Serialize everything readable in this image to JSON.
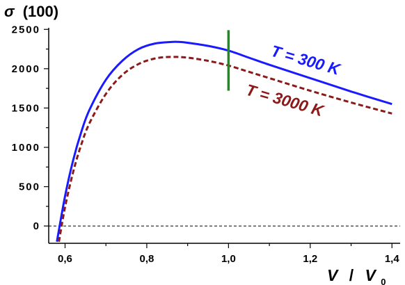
{
  "chart_data": {
    "type": "line",
    "title": "",
    "ylabel": {
      "symbol": "σ",
      "suffix": "(100)"
    },
    "xlabel": {
      "numerator": "V",
      "separator": "/",
      "denominator": "V",
      "denominator_subscript": "0"
    },
    "xlim": [
      0.56,
      1.42
    ],
    "ylim": [
      -220,
      2520
    ],
    "x_ticks": [
      0.6,
      0.8,
      1.0,
      1.2,
      1.4
    ],
    "x_tick_labels": [
      "0,6",
      "0,8",
      "1,0",
      "1,2",
      "1,4"
    ],
    "y_ticks": [
      0,
      500,
      1000,
      1500,
      2000,
      2500
    ],
    "y_tick_labels": [
      "0",
      "500",
      "1000",
      "1500",
      "2000",
      "2500"
    ],
    "grid": false,
    "zero_line": {
      "y": 0,
      "style": "dashed"
    },
    "marker_line": {
      "x": 1.0,
      "y_from": 1720,
      "y_to": 2490,
      "color": "#1f8a1f"
    },
    "series": [
      {
        "name": "T = 300 K",
        "color": "#1a1aff",
        "style": "solid",
        "x": [
          0.58,
          0.6,
          0.62,
          0.64,
          0.66,
          0.7,
          0.74,
          0.78,
          0.82,
          0.86,
          0.88,
          0.9,
          0.95,
          1.0,
          1.05,
          1.1,
          1.2,
          1.3,
          1.4
        ],
        "y": [
          -200,
          380,
          840,
          1200,
          1480,
          1860,
          2100,
          2250,
          2320,
          2340,
          2340,
          2330,
          2290,
          2230,
          2140,
          2050,
          1880,
          1710,
          1550
        ]
      },
      {
        "name": "T = 3000 K",
        "color": "#8b1a1a",
        "style": "dashed",
        "x": [
          0.585,
          0.6,
          0.62,
          0.64,
          0.66,
          0.7,
          0.74,
          0.78,
          0.82,
          0.86,
          0.9,
          0.95,
          1.0,
          1.05,
          1.1,
          1.2,
          1.3,
          1.4
        ],
        "y": [
          -200,
          240,
          690,
          1040,
          1310,
          1680,
          1920,
          2060,
          2130,
          2150,
          2140,
          2100,
          2040,
          1960,
          1880,
          1720,
          1570,
          1430
        ]
      }
    ],
    "annotations": [
      {
        "text": "T = 300 K",
        "series": 0
      },
      {
        "text": "T = 3000 K",
        "series": 1
      }
    ]
  }
}
